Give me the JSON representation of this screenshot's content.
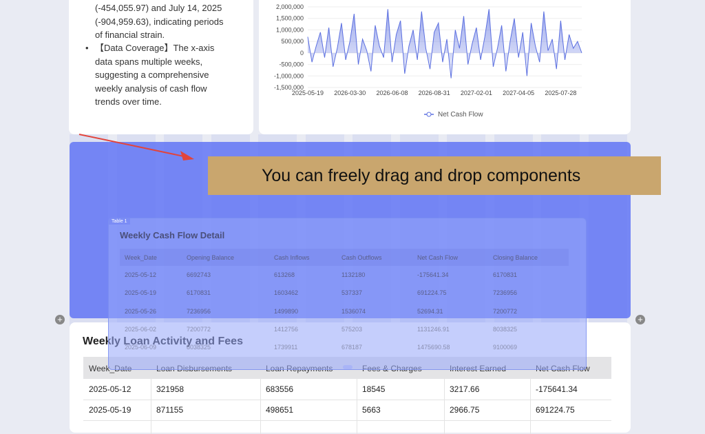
{
  "summary": {
    "paragraph": "(-454,055.97) and July 14, 2025 (-904,959.63), indicating periods of financial strain.",
    "bullet": "【Data Coverage】The x-axis data spans multiple weeks, suggesting a comprehensive weekly analysis of cash flow trends over time."
  },
  "cash_flow_chart": {
    "type": "area",
    "categories": [
      "2025-05-19",
      null,
      null,
      null,
      null,
      null,
      null,
      null,
      null,
      null,
      "2026-03-30",
      null,
      null,
      null,
      null,
      null,
      null,
      null,
      null,
      null,
      "2026-06-08",
      null,
      null,
      null,
      null,
      null,
      null,
      null,
      null,
      null,
      "2026-08-31",
      null,
      null,
      null,
      null,
      null,
      null,
      null,
      null,
      null,
      "2027-02-01",
      null,
      null,
      null,
      null,
      null,
      null,
      null,
      null,
      null,
      "2027-04-05",
      null,
      null,
      null,
      null,
      null,
      null,
      null,
      null,
      null,
      "2025-07-28",
      null,
      null,
      null,
      null,
      null
    ],
    "series": [
      {
        "name": "Net Cash Flow",
        "color": "#5b6fe0",
        "values": [
          700000,
          -400000,
          300000,
          900000,
          -200000,
          1100000,
          -600000,
          200000,
          1300000,
          -300000,
          500000,
          1700000,
          -500000,
          600000,
          100000,
          -800000,
          1200000,
          300000,
          -200000,
          1900000,
          -400000,
          800000,
          1400000,
          -900000,
          300000,
          1000000,
          -300000,
          1800000,
          200000,
          -700000,
          900000,
          1300000,
          -400000,
          600000,
          -1100000,
          1000000,
          200000,
          1600000,
          -500000,
          400000,
          1100000,
          -300000,
          700000,
          1900000,
          -600000,
          200000,
          1200000,
          -800000,
          500000,
          1500000,
          -200000,
          900000,
          -1000000,
          1300000,
          300000,
          -400000,
          1800000,
          100000,
          600000,
          -700000,
          1400000,
          -300000,
          800000,
          200000,
          500000,
          0
        ]
      }
    ],
    "ylim": [
      -1500000,
      2000000
    ],
    "yticks": [
      {
        "value": -1500000,
        "label": "-1,500,000"
      },
      {
        "value": -1000000,
        "label": "-1,000,000"
      },
      {
        "value": -500000,
        "label": "-500,000"
      },
      0,
      {
        "value": 500000,
        "label": "500,000"
      },
      {
        "value": 1000000,
        "label": "1,000,000"
      },
      {
        "value": 1500000,
        "label": "1,500,000"
      },
      {
        "value": 2000000,
        "label": "2,000,000"
      }
    ]
  },
  "banner": "You can freely drag and drop components",
  "floating_table": {
    "tag": "Table 1",
    "title": "Weekly Cash Flow Detail",
    "header": [
      "Week_Date",
      "Opening Balance",
      "Cash Inflows",
      "Cash Outflows",
      "Net Cash Flow",
      "Closing Balance"
    ],
    "rows": [
      [
        "2025-05-12",
        "6692743",
        "613268",
        "1132180",
        "-175641.34",
        "6170831"
      ],
      [
        "2025-05-19",
        "6170831",
        "1603462",
        "537337",
        "691224.75",
        "7236956"
      ],
      [
        "2025-05-26",
        "7236956",
        "1499890",
        "1536074",
        "52694.31",
        "7200772"
      ],
      [
        "2025-06-02",
        "7200772",
        "1412756",
        "575203",
        "1131246.91",
        "8038325"
      ],
      [
        "2025-06-09",
        "8038325",
        "1739911",
        "678187",
        "1475690.58",
        "9100069"
      ]
    ]
  },
  "loan_table": {
    "title": "Weekly Loan Activity and Fees",
    "header": [
      "Week_Date",
      "Loan Disbursements",
      "Loan Repayments",
      "Fees & Charges",
      "Interest Earned",
      "Net Cash Flow"
    ],
    "rows": [
      [
        "2025-05-12",
        "321958",
        "683556",
        "18545",
        "3217.66",
        "-175641.34"
      ],
      [
        "2025-05-19",
        "871155",
        "498651",
        "5663",
        "2966.75",
        "691224.75"
      ]
    ]
  }
}
